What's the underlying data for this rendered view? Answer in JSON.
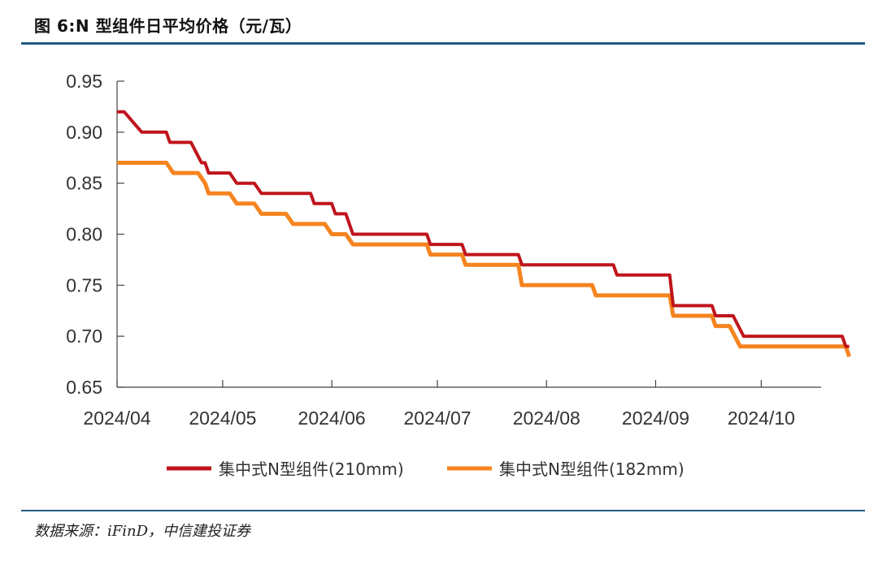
{
  "figure": {
    "title": "图 6:N 型组件日平均价格（元/瓦）",
    "source": "数据来源：iFinD，中信建投证券"
  },
  "chart_data": {
    "type": "line",
    "title": "",
    "xlabel": "",
    "ylabel": "",
    "ylim": [
      0.65,
      0.95
    ],
    "yticks": [
      "0.95",
      "0.90",
      "0.85",
      "0.80",
      "0.75",
      "0.70",
      "0.65"
    ],
    "xticks": [
      "2024/04",
      "2024/05",
      "2024/06",
      "2024/07",
      "2024/08",
      "2024/09",
      "2024/10"
    ],
    "grid": false,
    "legend_position": "bottom",
    "series": [
      {
        "name": "集中式N型组件(210mm)",
        "color": "#c0141c",
        "points": [
          [
            "2024-04-01",
            0.92
          ],
          [
            "2024-04-03",
            0.92
          ],
          [
            "2024-04-08",
            0.9
          ],
          [
            "2024-04-15",
            0.9
          ],
          [
            "2024-04-16",
            0.89
          ],
          [
            "2024-04-22",
            0.89
          ],
          [
            "2024-04-25",
            0.87
          ],
          [
            "2024-04-26",
            0.87
          ],
          [
            "2024-04-27",
            0.86
          ],
          [
            "2024-05-03",
            0.86
          ],
          [
            "2024-05-05",
            0.85
          ],
          [
            "2024-05-10",
            0.85
          ],
          [
            "2024-05-12",
            0.84
          ],
          [
            "2024-05-26",
            0.84
          ],
          [
            "2024-05-27",
            0.83
          ],
          [
            "2024-06-01",
            0.83
          ],
          [
            "2024-06-02",
            0.82
          ],
          [
            "2024-06-05",
            0.82
          ],
          [
            "2024-06-07",
            0.8
          ],
          [
            "2024-06-28",
            0.8
          ],
          [
            "2024-06-29",
            0.79
          ],
          [
            "2024-07-08",
            0.79
          ],
          [
            "2024-07-09",
            0.78
          ],
          [
            "2024-07-24",
            0.78
          ],
          [
            "2024-07-25",
            0.77
          ],
          [
            "2024-08-20",
            0.77
          ],
          [
            "2024-08-21",
            0.76
          ],
          [
            "2024-09-05",
            0.76
          ],
          [
            "2024-09-06",
            0.73
          ],
          [
            "2024-09-17",
            0.73
          ],
          [
            "2024-09-18",
            0.72
          ],
          [
            "2024-09-23",
            0.72
          ],
          [
            "2024-09-26",
            0.7
          ],
          [
            "2024-10-24",
            0.7
          ],
          [
            "2024-10-25",
            0.69
          ],
          [
            "2024-10-26",
            0.69
          ]
        ]
      },
      {
        "name": "集中式N型组件(182mm)",
        "color": "#f5841f",
        "points": [
          [
            "2024-04-01",
            0.87
          ],
          [
            "2024-04-15",
            0.87
          ],
          [
            "2024-04-17",
            0.86
          ],
          [
            "2024-04-24",
            0.86
          ],
          [
            "2024-04-26",
            0.85
          ],
          [
            "2024-04-27",
            0.84
          ],
          [
            "2024-05-03",
            0.84
          ],
          [
            "2024-05-05",
            0.83
          ],
          [
            "2024-05-10",
            0.83
          ],
          [
            "2024-05-12",
            0.82
          ],
          [
            "2024-05-19",
            0.82
          ],
          [
            "2024-05-21",
            0.81
          ],
          [
            "2024-05-30",
            0.81
          ],
          [
            "2024-06-01",
            0.8
          ],
          [
            "2024-06-05",
            0.8
          ],
          [
            "2024-06-07",
            0.79
          ],
          [
            "2024-06-28",
            0.79
          ],
          [
            "2024-06-29",
            0.78
          ],
          [
            "2024-07-08",
            0.78
          ],
          [
            "2024-07-09",
            0.77
          ],
          [
            "2024-07-24",
            0.77
          ],
          [
            "2024-07-25",
            0.75
          ],
          [
            "2024-08-14",
            0.75
          ],
          [
            "2024-08-15",
            0.74
          ],
          [
            "2024-09-05",
            0.74
          ],
          [
            "2024-09-06",
            0.72
          ],
          [
            "2024-09-17",
            0.72
          ],
          [
            "2024-09-18",
            0.71
          ],
          [
            "2024-09-22",
            0.71
          ],
          [
            "2024-09-25",
            0.69
          ],
          [
            "2024-10-25",
            0.69
          ],
          [
            "2024-10-26",
            0.68
          ]
        ]
      }
    ]
  }
}
